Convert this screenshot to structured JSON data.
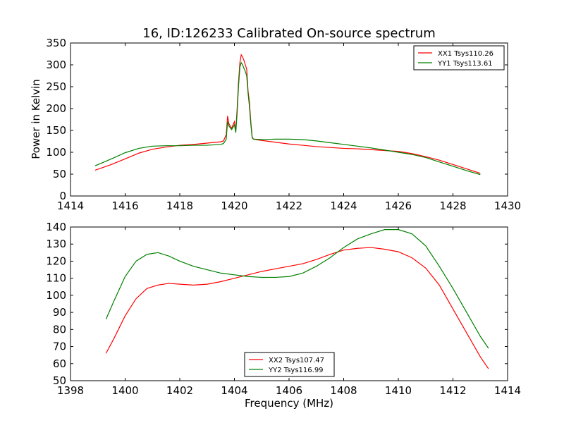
{
  "chart_data": [
    {
      "type": "line",
      "title": "16, ID:126233 Calibrated On-source spectrum",
      "xlabel": "",
      "ylabel": "Power in Kelvin",
      "xlim": [
        1414,
        1430
      ],
      "ylim": [
        0,
        350
      ],
      "xticks": [
        "1414",
        "1416",
        "1418",
        "1420",
        "1422",
        "1424",
        "1426",
        "1428",
        "1430"
      ],
      "yticks": [
        "0",
        "50",
        "100",
        "150",
        "200",
        "250",
        "300",
        "350"
      ],
      "legend_position": "top-right",
      "grid": false,
      "series": [
        {
          "name": "XX1 Tsys110.26",
          "color": "#ff0000",
          "x": [
            1414.9,
            1415.5,
            1416.0,
            1416.5,
            1417.0,
            1417.5,
            1418.0,
            1418.5,
            1419.0,
            1419.5,
            1419.6,
            1419.7,
            1419.75,
            1419.8,
            1419.9,
            1420.0,
            1420.05,
            1420.1,
            1420.15,
            1420.2,
            1420.25,
            1420.3,
            1420.35,
            1420.4,
            1420.45,
            1420.5,
            1420.55,
            1420.6,
            1420.65,
            1420.7,
            1421.0,
            1421.5,
            1422.0,
            1422.5,
            1423.0,
            1423.5,
            1424.0,
            1424.5,
            1425.0,
            1425.5,
            1426.0,
            1426.5,
            1427.0,
            1427.5,
            1428.0,
            1428.5,
            1429.0
          ],
          "y": [
            59,
            72,
            85,
            98,
            107,
            112,
            116,
            118,
            121,
            124,
            126,
            140,
            183,
            165,
            155,
            170,
            150,
            200,
            260,
            305,
            323,
            318,
            310,
            300,
            290,
            240,
            215,
            170,
            135,
            130,
            127,
            123,
            119,
            116,
            113,
            111,
            109,
            108,
            106,
            104,
            102,
            97,
            90,
            82,
            72,
            62,
            52
          ]
        },
        {
          "name": "YY1 Tsys113.61",
          "color": "#008000",
          "x": [
            1414.9,
            1415.5,
            1416.0,
            1416.5,
            1417.0,
            1417.5,
            1418.0,
            1418.5,
            1419.0,
            1419.5,
            1419.6,
            1419.7,
            1419.75,
            1419.8,
            1419.9,
            1420.0,
            1420.05,
            1420.1,
            1420.15,
            1420.2,
            1420.25,
            1420.3,
            1420.35,
            1420.4,
            1420.45,
            1420.5,
            1420.55,
            1420.6,
            1420.65,
            1420.7,
            1421.0,
            1421.5,
            1422.0,
            1422.5,
            1423.0,
            1423.5,
            1424.0,
            1424.5,
            1425.0,
            1425.5,
            1426.0,
            1426.5,
            1427.0,
            1427.5,
            1428.0,
            1428.5,
            1429.0
          ],
          "y": [
            69,
            85,
            99,
            109,
            114,
            115,
            115,
            116,
            116,
            118,
            120,
            130,
            170,
            160,
            152,
            163,
            145,
            190,
            250,
            295,
            305,
            300,
            292,
            285,
            275,
            235,
            205,
            165,
            133,
            130,
            129,
            130,
            130,
            129,
            126,
            122,
            118,
            114,
            110,
            105,
            100,
            95,
            88,
            78,
            68,
            58,
            49
          ]
        }
      ]
    },
    {
      "type": "line",
      "title": "",
      "xlabel": "Frequency (MHz)",
      "ylabel": "",
      "xlim": [
        1398,
        1414
      ],
      "ylim": [
        50,
        140
      ],
      "xticks": [
        "1398",
        "1400",
        "1402",
        "1404",
        "1406",
        "1408",
        "1410",
        "1412",
        "1414"
      ],
      "yticks": [
        "50",
        "60",
        "70",
        "80",
        "90",
        "100",
        "110",
        "120",
        "130",
        "140"
      ],
      "legend_position": "bottom-center",
      "grid": false,
      "series": [
        {
          "name": "XX2 Tsys107.47",
          "color": "#ff0000",
          "x": [
            1399.3,
            1399.6,
            1400.0,
            1400.4,
            1400.8,
            1401.2,
            1401.6,
            1402.0,
            1402.5,
            1403.0,
            1403.5,
            1404.0,
            1404.5,
            1405.0,
            1405.5,
            1406.0,
            1406.5,
            1407.0,
            1407.5,
            1408.0,
            1408.5,
            1409.0,
            1409.5,
            1410.0,
            1410.5,
            1411.0,
            1411.5,
            1412.0,
            1412.5,
            1413.0,
            1413.3
          ],
          "y": [
            66,
            75,
            88,
            98,
            104,
            106,
            107,
            106.5,
            106,
            106.5,
            108,
            110,
            112,
            114,
            115.5,
            117,
            118.5,
            121,
            124,
            126.5,
            127.5,
            128,
            127,
            125.5,
            122,
            116,
            106,
            92,
            78,
            64,
            57
          ]
        },
        {
          "name": "YY2 Tsys116.99",
          "color": "#008000",
          "x": [
            1399.3,
            1399.6,
            1400.0,
            1400.4,
            1400.8,
            1401.2,
            1401.6,
            1402.0,
            1402.5,
            1403.0,
            1403.5,
            1404.0,
            1404.5,
            1405.0,
            1405.5,
            1406.0,
            1406.5,
            1407.0,
            1407.5,
            1408.0,
            1408.5,
            1409.0,
            1409.5,
            1410.0,
            1410.5,
            1411.0,
            1411.5,
            1412.0,
            1412.5,
            1413.0,
            1413.3
          ],
          "y": [
            86,
            97,
            111,
            120,
            124,
            125,
            123,
            120,
            117,
            115,
            113,
            112,
            111,
            110.5,
            110.5,
            111,
            113,
            117,
            122,
            128,
            133,
            136,
            138.5,
            138.5,
            136,
            129,
            117,
            104,
            90,
            76,
            69
          ]
        }
      ]
    }
  ]
}
